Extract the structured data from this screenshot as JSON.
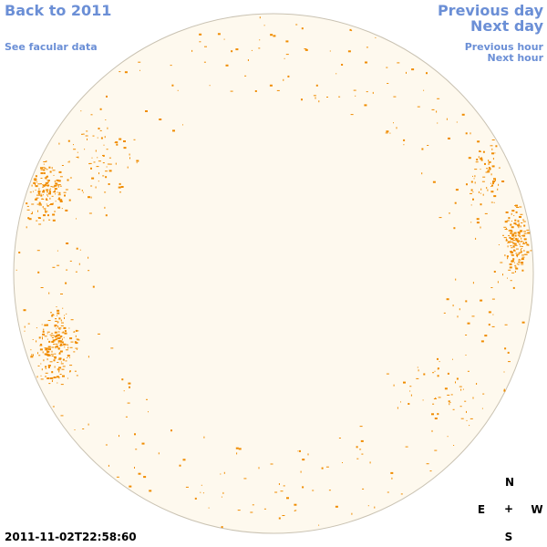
{
  "nav": {
    "back": "Back to 2011",
    "see_facular": "See facular data",
    "previous_day": "Previous day",
    "next_day": "Next day",
    "previous_hour": "Previous hour",
    "next_hour": "Next hour"
  },
  "timestamp": "2011-11-02T22:58:60",
  "compass": {
    "north": "N",
    "east": "E",
    "center": "+",
    "west": "W",
    "south": "S"
  }
}
